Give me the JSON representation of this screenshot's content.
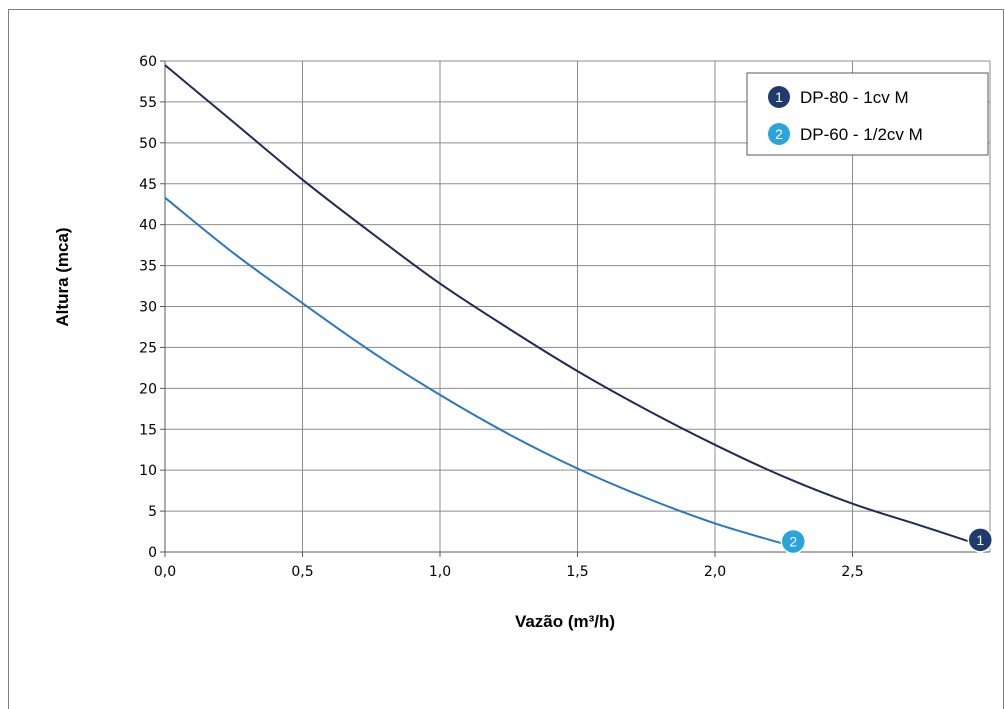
{
  "chart_data": {
    "type": "line",
    "title": "",
    "xlabel": "Vazão (m³/h)",
    "ylabel": "Altura (mca)",
    "xlim": [
      0,
      3
    ],
    "ylim": [
      0,
      60
    ],
    "xticks": [
      "0,0",
      "0,5",
      "1,0",
      "1,5",
      "2,0",
      "2,5"
    ],
    "yticks": [
      "0",
      "5",
      "10",
      "15",
      "20",
      "25",
      "30",
      "35",
      "40",
      "45",
      "50",
      "55",
      "60"
    ],
    "grid": true,
    "legend_position": "top-right",
    "series": [
      {
        "name": "DP-80 - 1cv M",
        "marker_label": "1",
        "color": "#1f2a5a",
        "badge_color": "#1f3a6e",
        "x": [
          0,
          0.25,
          0.5,
          0.75,
          1.0,
          1.25,
          1.5,
          1.75,
          2.0,
          2.25,
          2.5,
          2.75,
          2.95
        ],
        "y": [
          59.5,
          52.5,
          45.5,
          39.0,
          32.8,
          27.3,
          22.1,
          17.4,
          13.1,
          9.2,
          5.9,
          3.2,
          1.0
        ]
      },
      {
        "name": "DP-60 - 1/2cv M",
        "marker_label": "2",
        "color": "#2a78c0",
        "badge_color": "#2aa4dc",
        "x": [
          0,
          0.25,
          0.5,
          0.75,
          1.0,
          1.25,
          1.5,
          1.75,
          2.0,
          2.27
        ],
        "y": [
          43.3,
          36.5,
          30.4,
          24.5,
          19.2,
          14.4,
          10.2,
          6.6,
          3.5,
          0.8
        ]
      }
    ]
  }
}
